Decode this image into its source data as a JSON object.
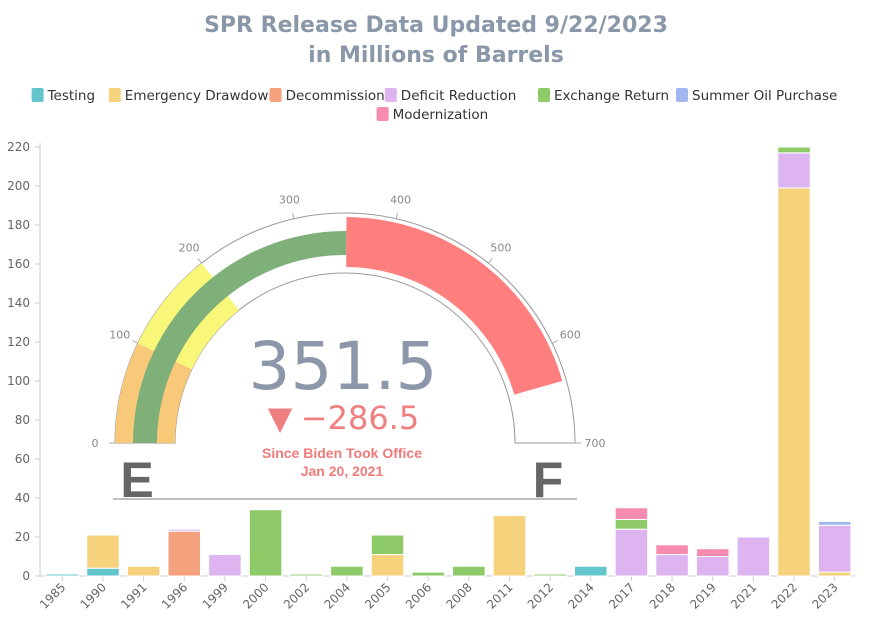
{
  "chart_data": {
    "type": "bar",
    "stacked": true,
    "title_line1": "SPR Release Data Updated 9/22/2023",
    "title_line2": "in Millions of Barrels",
    "ylim": [
      0,
      220
    ],
    "yticks": [
      0,
      20,
      40,
      60,
      80,
      100,
      120,
      140,
      160,
      180,
      200,
      220
    ],
    "grid": false,
    "legend_position": "top",
    "categories": [
      "1985",
      "1990",
      "1991",
      "1996",
      "1999",
      "2000",
      "2002",
      "2004",
      "2005",
      "2006",
      "2008",
      "2011",
      "2012",
      "2014",
      "2017",
      "2018",
      "2019",
      "2021",
      "2022",
      "2023"
    ],
    "series": [
      {
        "name": "Testing",
        "color": "#62c6cc",
        "values": [
          1,
          4,
          0,
          0,
          0,
          0,
          0,
          0,
          0,
          0,
          0,
          0,
          0,
          5,
          0,
          0,
          0,
          0,
          0,
          0
        ]
      },
      {
        "name": "Emergency Drawdown",
        "color": "#f6d27c",
        "values": [
          0,
          17,
          5,
          0,
          0,
          0,
          0,
          0,
          11,
          0,
          0,
          31,
          0,
          0,
          0,
          0,
          0,
          0,
          199,
          2
        ]
      },
      {
        "name": "Decommission",
        "color": "#f7a27e",
        "values": [
          0,
          0,
          0,
          23,
          0,
          0,
          0,
          0,
          0,
          0,
          0,
          0,
          0,
          0,
          0,
          0,
          0,
          0,
          0,
          0
        ]
      },
      {
        "name": "Deficit Reduction",
        "color": "#ddb4f0",
        "values": [
          0,
          0,
          0,
          1,
          11,
          0,
          0,
          0,
          0,
          0,
          0,
          0,
          0,
          0,
          24,
          11,
          10,
          20,
          18,
          24
        ]
      },
      {
        "name": "Exchange Return",
        "color": "#8ecb68",
        "values": [
          0,
          0,
          0,
          0,
          0,
          34,
          1,
          5,
          10,
          2,
          5,
          0,
          1,
          0,
          5,
          0,
          0,
          0,
          3,
          0
        ]
      },
      {
        "name": "Summer Oil Purchase",
        "color": "#a2b6f0",
        "values": [
          0,
          0,
          0,
          0,
          0,
          0,
          0,
          0,
          0,
          0,
          0,
          0,
          0,
          0,
          0,
          0,
          0,
          0,
          0,
          2
        ]
      },
      {
        "name": "Modernization",
        "color": "#f58bb0",
        "values": [
          0,
          0,
          0,
          0,
          0,
          0,
          0,
          0,
          0,
          0,
          0,
          0,
          0,
          0,
          6,
          5,
          4,
          0,
          0,
          0
        ]
      }
    ]
  },
  "gauge": {
    "value": "351.5",
    "value_num": 351.5,
    "baseline_num": 638,
    "delta_arrow": "▼",
    "delta": "−286.5",
    "caption_line1": "Since Biden Took Office",
    "caption_line2": "Jan 20, 2021",
    "ticks": [
      0,
      100,
      200,
      300,
      400,
      500,
      600,
      700
    ],
    "range": [
      0,
      700
    ],
    "empty_label": "E",
    "full_label": "F",
    "colors": {
      "orange_band": "#f9c97a",
      "yellow_band": "#f8f77a",
      "green_value": "#7fb07a",
      "red_drop": "#ff7f7f",
      "outline": "#999999"
    }
  }
}
